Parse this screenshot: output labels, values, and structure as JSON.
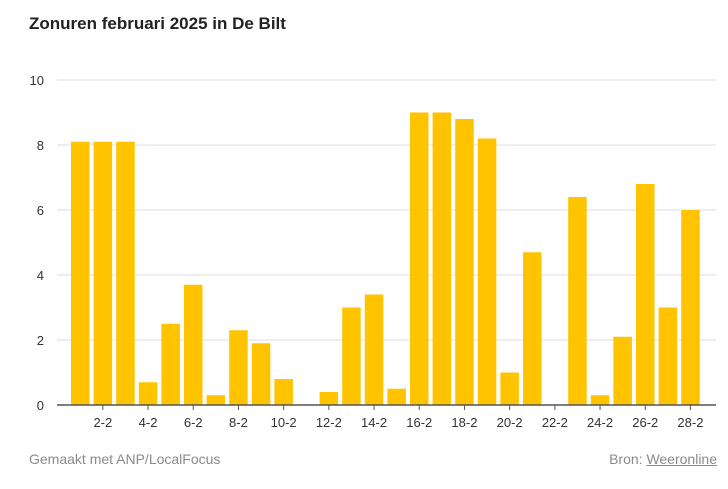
{
  "header": {
    "title": "Zonuren februari 2025 in De Bilt"
  },
  "footer": {
    "credit": "Gemaakt met ANP/LocalFocus",
    "source_label": "Bron:",
    "source_link": "Weeronline"
  },
  "colors": {
    "bar": "#FFC300",
    "grid": "#dddddd",
    "axis": "#555555",
    "text": "#333333"
  },
  "chart_data": {
    "type": "bar",
    "title": "Zonuren februari 2025 in De Bilt",
    "xlabel": "",
    "ylabel": "",
    "ylim": [
      0,
      10
    ],
    "yticks": [
      0,
      2,
      4,
      6,
      8,
      10
    ],
    "grid": true,
    "categories": [
      "1-2",
      "2-2",
      "3-2",
      "4-2",
      "5-2",
      "6-2",
      "7-2",
      "8-2",
      "9-2",
      "10-2",
      "11-2",
      "12-2",
      "13-2",
      "14-2",
      "15-2",
      "16-2",
      "17-2",
      "18-2",
      "19-2",
      "20-2",
      "21-2",
      "22-2",
      "23-2",
      "24-2",
      "25-2",
      "26-2",
      "27-2",
      "28-2"
    ],
    "xtick_labels": [
      "2-2",
      "4-2",
      "6-2",
      "8-2",
      "10-2",
      "12-2",
      "14-2",
      "16-2",
      "18-2",
      "20-2",
      "22-2",
      "24-2",
      "26-2",
      "28-2"
    ],
    "values": [
      8.1,
      8.1,
      8.1,
      0.7,
      2.5,
      3.7,
      0.3,
      2.3,
      1.9,
      0.8,
      0.0,
      0.4,
      3.0,
      3.4,
      0.5,
      9.0,
      9.0,
      8.8,
      8.2,
      1.0,
      4.7,
      0.0,
      6.4,
      0.3,
      2.1,
      6.8,
      3.0,
      6.0
    ]
  }
}
